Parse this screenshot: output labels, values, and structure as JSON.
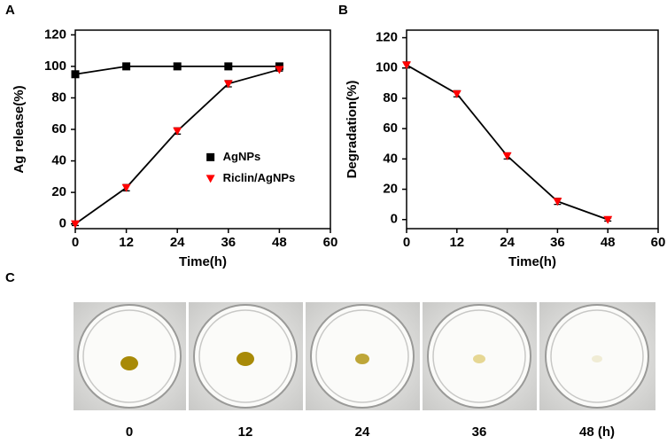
{
  "panel_labels": [
    "A",
    "B",
    "C"
  ],
  "chart_data": [
    {
      "type": "line",
      "x_label": "Time(h)",
      "y_label": "Ag release(%)",
      "x": [
        0,
        12,
        24,
        36,
        48
      ],
      "xlim": [
        0,
        60
      ],
      "xticks": [
        0,
        12,
        24,
        36,
        48,
        60
      ],
      "ylim": [
        -3,
        123
      ],
      "yticks": [
        0,
        20,
        40,
        60,
        80,
        100,
        120
      ],
      "line_color": "#000000",
      "legend": "center right",
      "grid": false,
      "series": [
        {
          "name": "AgNPs",
          "color": "#000000",
          "marker": "square",
          "values": [
            95,
            100,
            100,
            100,
            100
          ]
        },
        {
          "name": "Riclin/AgNPs",
          "color": "#ff0000",
          "marker": "triangle-down",
          "values": [
            0,
            23,
            59,
            89,
            98
          ],
          "errors": [
            1,
            2,
            2,
            2,
            1
          ]
        }
      ]
    },
    {
      "type": "line",
      "x_label": "Time(h)",
      "y_label": "Degradation(%)",
      "x": [
        0,
        12,
        24,
        36,
        48
      ],
      "xlim": [
        0,
        60
      ],
      "xticks": [
        0,
        12,
        24,
        36,
        48,
        60
      ],
      "ylim": [
        -6,
        125
      ],
      "yticks": [
        0,
        20,
        40,
        60,
        80,
        100,
        120
      ],
      "line_color": "#000000",
      "grid": false,
      "series": [
        {
          "color": "#ff0000",
          "marker": "triangle-down",
          "values": [
            102,
            83,
            42,
            12,
            0
          ],
          "errors": [
            2,
            2,
            2,
            2,
            1
          ]
        }
      ]
    }
  ],
  "photos": {
    "labels": [
      "0",
      "12",
      "24",
      "36",
      "48 (h)"
    ]
  }
}
